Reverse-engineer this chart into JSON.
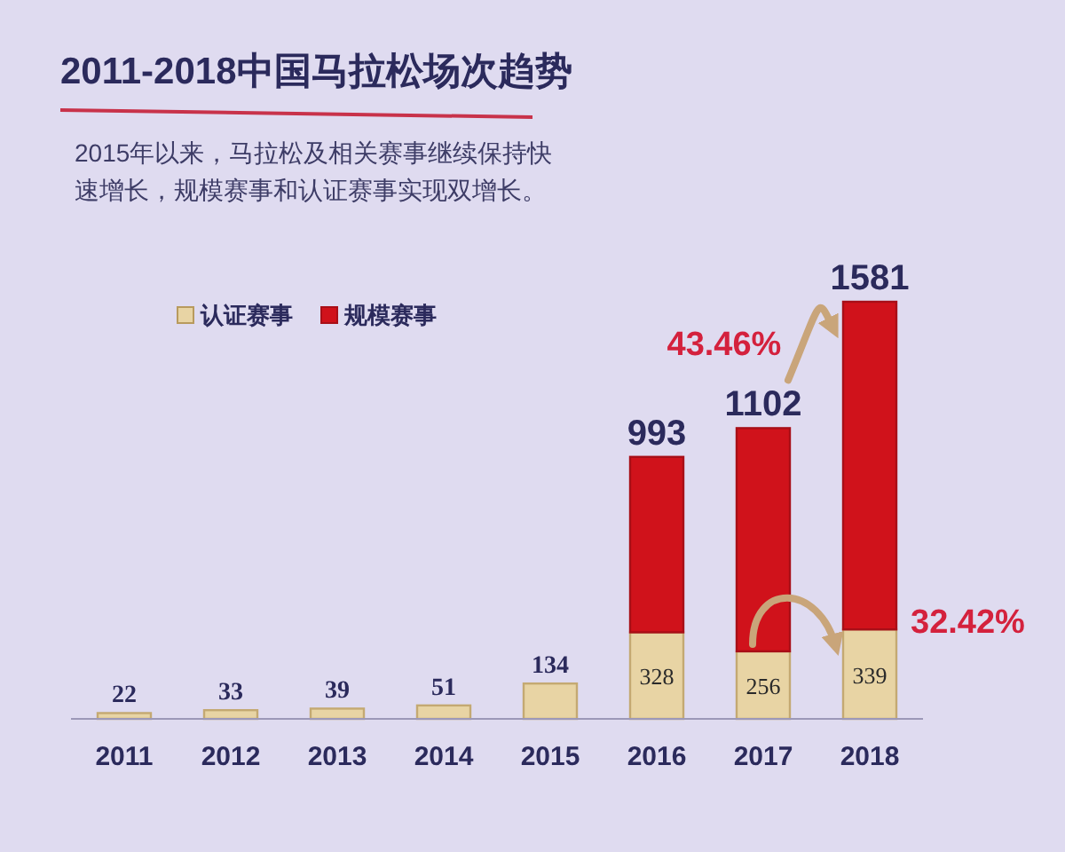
{
  "chart_data": {
    "type": "bar",
    "title": "2011-2018中国马拉松场次趋势",
    "subtitle": "2015年以来，马拉松及相关赛事继续保持快速增长，规模赛事和认证赛事实现双增长。",
    "categories": [
      "2011",
      "2012",
      "2013",
      "2014",
      "2015",
      "2016",
      "2017",
      "2018"
    ],
    "stacked": true,
    "series": [
      {
        "name": "认证赛事",
        "color": "#e8d4a4",
        "values": [
          22,
          33,
          39,
          51,
          134,
          328,
          256,
          339
        ],
        "value_labels": [
          "22",
          "33",
          "39",
          "51",
          "134",
          "328",
          "256",
          "339"
        ]
      },
      {
        "name": "规模赛事",
        "color": "#d0121b",
        "values": [
          null,
          null,
          null,
          null,
          null,
          665,
          846,
          1242
        ]
      }
    ],
    "totals": [
      null,
      null,
      null,
      null,
      null,
      "993",
      "1102",
      "1581"
    ],
    "annotations": [
      {
        "text": "43.46%",
        "x": "2017",
        "y": 1102
      },
      {
        "text": "32.42%",
        "x": "2018",
        "y": 339
      }
    ],
    "legend": "top left"
  }
}
